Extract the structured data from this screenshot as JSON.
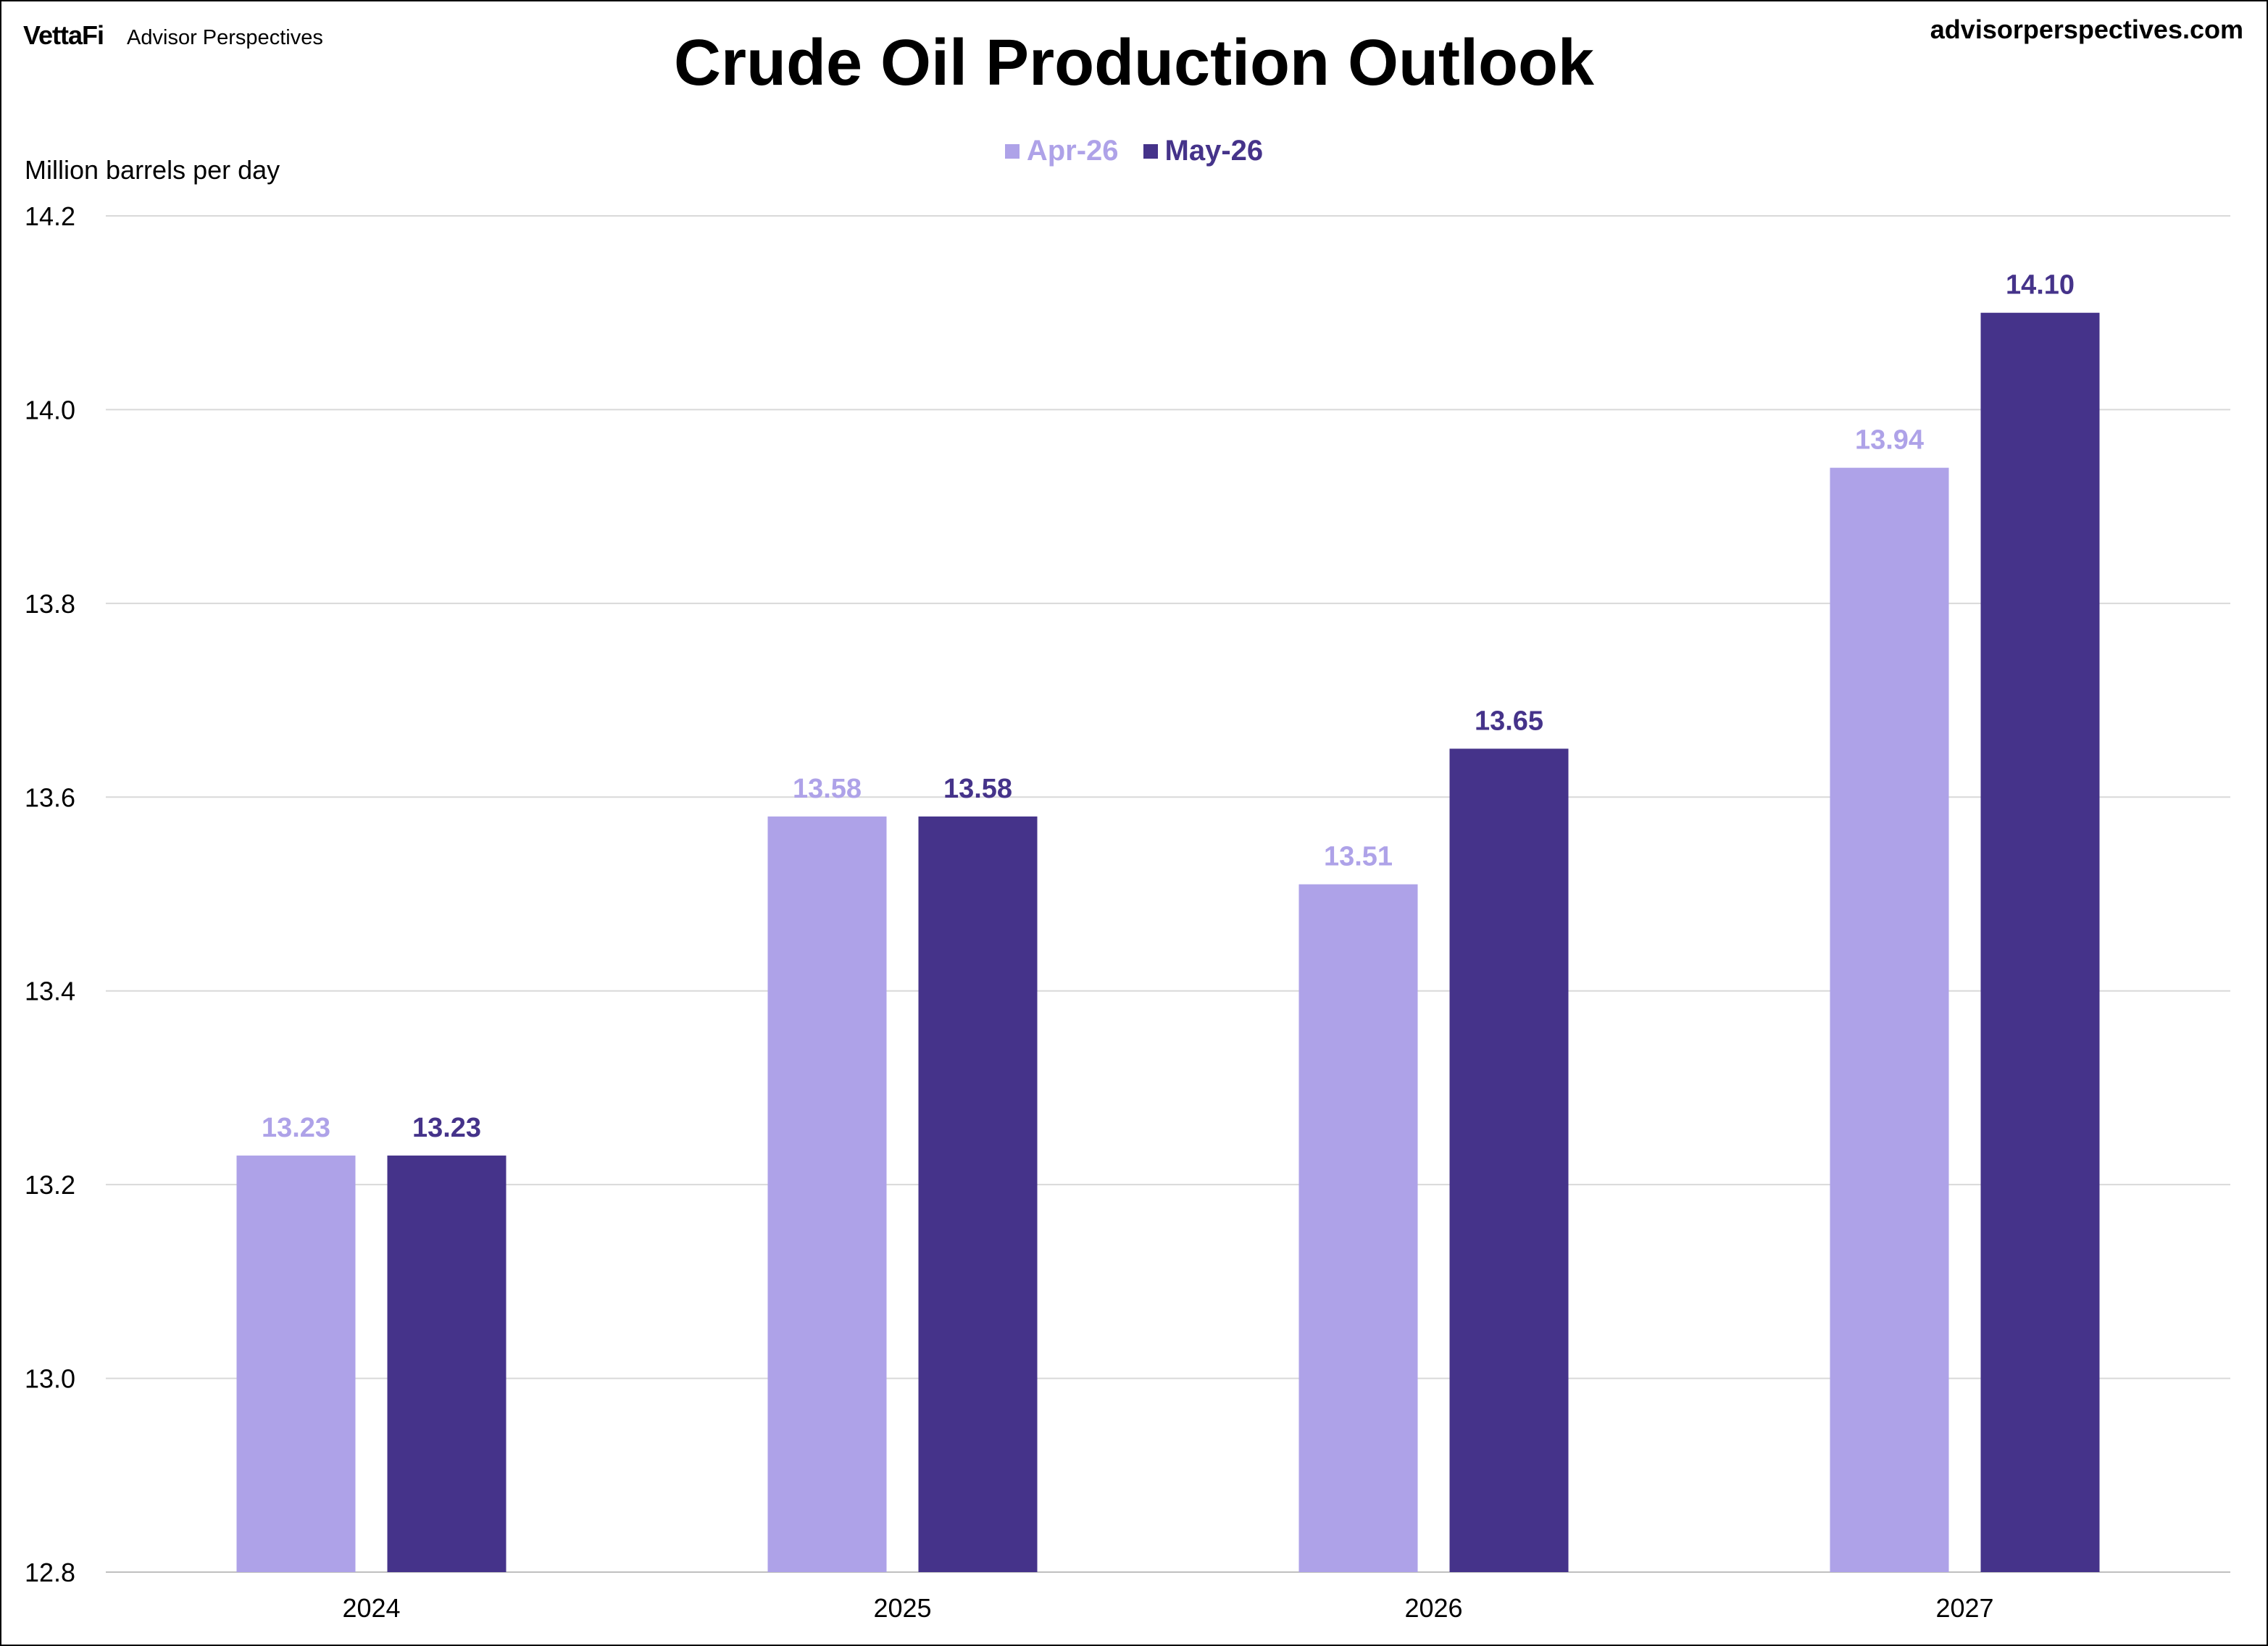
{
  "header": {
    "brand_logo": "VettaFi",
    "brand_name": "Advisor Perspectives",
    "site_url": "advisorperspectives.com"
  },
  "chart_data": {
    "type": "bar",
    "title": "Crude Oil Production Outlook",
    "ylabel": "Million barrels per day",
    "xlabel": "",
    "categories": [
      "2024",
      "2025",
      "2026",
      "2027"
    ],
    "series": [
      {
        "name": "Apr-26",
        "values": [
          13.23,
          13.58,
          13.51,
          13.94
        ],
        "labels": [
          "13.23",
          "13.58",
          "13.51",
          "13.94"
        ],
        "color": "#AEA2E8"
      },
      {
        "name": "May-26",
        "values": [
          13.23,
          13.58,
          13.65,
          14.1
        ],
        "labels": [
          "13.23",
          "13.58",
          "13.65",
          "14.10"
        ],
        "color": "#45338A"
      }
    ],
    "ylim": [
      12.8,
      14.2
    ],
    "yticks": [
      "12.8",
      "13.0",
      "13.2",
      "13.4",
      "13.6",
      "13.8",
      "14.0",
      "14.2"
    ],
    "grid": true,
    "legend_position": "top-center"
  }
}
